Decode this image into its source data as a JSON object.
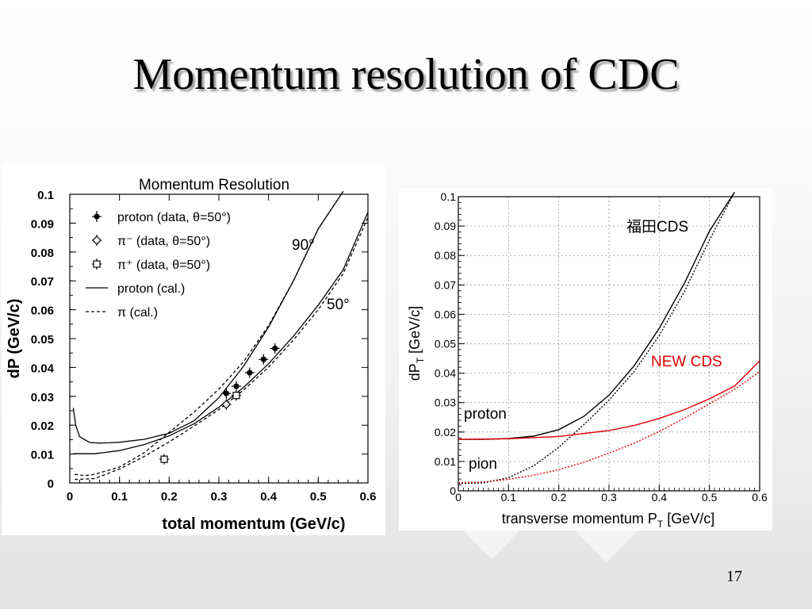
{
  "slide": {
    "title": "Momentum resolution of CDC",
    "page_number": "17"
  },
  "chart_data": [
    {
      "type": "line",
      "title": "Momentum Resolution",
      "xlabel": "total momentum (GeV/c)",
      "ylabel": "dP (GeV/c)",
      "xlim": [
        0,
        0.6
      ],
      "ylim": [
        0,
        0.1
      ],
      "xticks": [
        0,
        0.1,
        0.2,
        0.3,
        0.4,
        0.5,
        0.6
      ],
      "xtick_labels": [
        "0",
        "0.1",
        "0.2",
        "0.3",
        "0.4",
        "0.5",
        "0.6"
      ],
      "yticks": [
        0,
        0.01,
        0.02,
        0.03,
        0.04,
        0.05,
        0.06,
        0.07,
        0.08,
        0.09,
        0.1
      ],
      "ytick_labels": [
        "0",
        "0.01",
        "0.02",
        "0.03",
        "0.04",
        "0.05",
        "0.06",
        "0.07",
        "0.08",
        "0.09",
        "0.1"
      ],
      "grid": false,
      "legend": {
        "placement": "top-left",
        "entries": [
          "proton (data, θ=50°)",
          "π⁻ (data, θ=50°)",
          "π⁺ (data, θ=50°)",
          "proton (cal.)",
          "π (cal.)"
        ]
      },
      "annotations": [
        "90°",
        "50°"
      ],
      "series": [
        {
          "name": "proton (data, θ=50°)",
          "style": "filled-marker",
          "x": [
            0.315,
            0.335,
            0.362,
            0.39,
            0.413
          ],
          "y": [
            0.031,
            0.0335,
            0.0382,
            0.0428,
            0.0466
          ],
          "yerr": 0.0018
        },
        {
          "name": "π⁻ (data, θ=50°)",
          "style": "open-diamond",
          "x": [
            0.315
          ],
          "y": [
            0.0272
          ],
          "yerr": 0.0018
        },
        {
          "name": "π⁺ (data, θ=50°)",
          "style": "open-square",
          "x": [
            0.19,
            0.335
          ],
          "y": [
            0.0082,
            0.0303
          ],
          "yerr": 0.0018
        },
        {
          "name": "proton (cal.)",
          "style": "solid",
          "label": "90°",
          "x": [
            0.007,
            0.012,
            0.02,
            0.04,
            0.06,
            0.08,
            0.1,
            0.15,
            0.2,
            0.25,
            0.3,
            0.35,
            0.4,
            0.45,
            0.5,
            0.55
          ],
          "y": [
            0.026,
            0.02,
            0.016,
            0.014,
            0.0138,
            0.0139,
            0.0141,
            0.0151,
            0.0172,
            0.0215,
            0.0295,
            0.0405,
            0.054,
            0.07,
            0.088,
            0.101
          ]
        },
        {
          "name": "π (cal.)",
          "style": "dotted",
          "label": "90°",
          "x": [
            0.01,
            0.03,
            0.05,
            0.1,
            0.15,
            0.2,
            0.25,
            0.3,
            0.35,
            0.4,
            0.45,
            0.5,
            0.55
          ],
          "y": [
            0.003,
            0.0025,
            0.003,
            0.0055,
            0.0105,
            0.0175,
            0.0245,
            0.0325,
            0.042,
            0.0545,
            0.07,
            0.088,
            0.101
          ]
        },
        {
          "name": "proton (cal.)",
          "style": "solid",
          "label": "50°",
          "x": [
            0.007,
            0.05,
            0.1,
            0.15,
            0.2,
            0.25,
            0.3,
            0.35,
            0.4,
            0.45,
            0.5,
            0.55,
            0.6
          ],
          "y": [
            0.0101,
            0.0101,
            0.0112,
            0.0133,
            0.0163,
            0.0205,
            0.0262,
            0.0331,
            0.0413,
            0.0508,
            0.0616,
            0.0738,
            0.0938
          ]
        },
        {
          "name": "π (cal.)",
          "style": "dotted",
          "label": "50°",
          "x": [
            0.01,
            0.05,
            0.1,
            0.15,
            0.2,
            0.25,
            0.3,
            0.35,
            0.4,
            0.45,
            0.5,
            0.55,
            0.6
          ],
          "y": [
            0.0012,
            0.0015,
            0.0048,
            0.0092,
            0.0142,
            0.0197,
            0.0254,
            0.0322,
            0.0401,
            0.0495,
            0.06,
            0.0725,
            0.092
          ]
        }
      ]
    },
    {
      "type": "line",
      "xlabel": "transverse momentum P",
      "xlabel_sub": "T",
      "xlabel_unit": " [GeV/c]",
      "ylabel": "dP",
      "ylabel_sub": "T",
      "ylabel_unit": " [GeV/c]",
      "xlim": [
        0,
        0.6
      ],
      "ylim": [
        0,
        0.1
      ],
      "xticks": [
        0,
        0.1,
        0.2,
        0.3,
        0.4,
        0.5,
        0.6
      ],
      "xtick_labels": [
        "0",
        "0.1",
        "0.2",
        "0.3",
        "0.4",
        "0.5",
        "0.6"
      ],
      "yticks": [
        0,
        0.01,
        0.02,
        0.03,
        0.04,
        0.05,
        0.06,
        0.07,
        0.08,
        0.09,
        0.1
      ],
      "ytick_labels": [
        "0",
        "0.01",
        "0.02",
        "0.03",
        "0.04",
        "0.05",
        "0.06",
        "0.07",
        "0.08",
        "0.09",
        "0.1"
      ],
      "grid": true,
      "annotations": [
        "福田CDS",
        "NEW CDS",
        "proton",
        "pion"
      ],
      "colors": {
        "black": "#000000",
        "red": "#e00000"
      },
      "series": [
        {
          "name": "福田CDS",
          "particle": "proton",
          "style": "solid",
          "color": "#000000",
          "x": [
            0,
            0.05,
            0.1,
            0.15,
            0.2,
            0.25,
            0.3,
            0.35,
            0.4,
            0.45,
            0.5,
            0.55
          ],
          "y": [
            0.0175,
            0.0175,
            0.0178,
            0.0186,
            0.0208,
            0.0253,
            0.0325,
            0.0425,
            0.0552,
            0.0705,
            0.0883,
            0.1015
          ]
        },
        {
          "name": "福田CDS",
          "particle": "pion",
          "style": "dotted",
          "color": "#000000",
          "x": [
            0,
            0.05,
            0.1,
            0.15,
            0.2,
            0.25,
            0.3,
            0.35,
            0.4,
            0.45,
            0.5,
            0.55
          ],
          "y": [
            0.0025,
            0.0027,
            0.0045,
            0.0085,
            0.0148,
            0.0225,
            0.0308,
            0.0406,
            0.0528,
            0.0677,
            0.0853,
            0.1015
          ]
        },
        {
          "name": "NEW CDS",
          "particle": "proton",
          "style": "solid",
          "color": "#e00000",
          "x": [
            0,
            0.1,
            0.2,
            0.3,
            0.35,
            0.4,
            0.45,
            0.5,
            0.55,
            0.6
          ],
          "y": [
            0.0175,
            0.0177,
            0.0185,
            0.0205,
            0.0222,
            0.0246,
            0.0276,
            0.0313,
            0.0356,
            0.0442
          ]
        },
        {
          "name": "NEW CDS",
          "particle": "pion",
          "style": "dotted",
          "color": "#e00000",
          "x": [
            0,
            0.05,
            0.1,
            0.15,
            0.2,
            0.25,
            0.3,
            0.35,
            0.4,
            0.45,
            0.5,
            0.55,
            0.6
          ],
          "y": [
            0.0028,
            0.003,
            0.0039,
            0.0053,
            0.0072,
            0.0097,
            0.0128,
            0.0162,
            0.0202,
            0.0247,
            0.0296,
            0.0345,
            0.0405
          ]
        }
      ]
    }
  ]
}
